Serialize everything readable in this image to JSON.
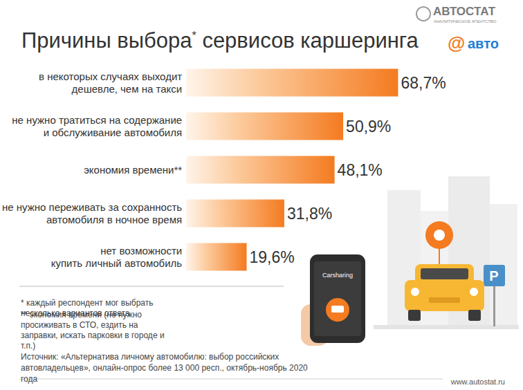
{
  "chart_data": {
    "type": "bar",
    "orientation": "horizontal",
    "title": "Причины выбора* сервисов каршеринга",
    "categories": [
      "в некоторых случаях выходит\nдешевле, чем на такси",
      "не нужно тратиться на содержание\nи обслуживание автомобиля",
      "экономия времени**",
      "не нужно переживать за сохранность\nавтомобиля в ночное время",
      "нет возможности\nкупить личный автомобиль"
    ],
    "values": [
      68.7,
      50.9,
      48.1,
      31.8,
      19.6
    ],
    "value_labels": [
      "68,7%",
      "50,9%",
      "48,1%",
      "31,8%",
      "19,6%"
    ],
    "data_labels": true,
    "color": "#f47b20",
    "xlim": [
      0,
      100
    ],
    "tick_labels": "y",
    "grid": false,
    "footnotes": [
      "* каждый респондент мог выбрать несколько вариантов ответа",
      "** экономия времени (не нужно просиживать в СТО, ездить на заправки, искать парковки в городе и т.п.)"
    ],
    "source": "Источник: «Альтернатива личному автомобилю: выбор российских автовладельцев», онлайн-опрос более 13 000 респ., октябрь-ноябрь 2020 года",
    "website": "www.autostat.ru",
    "logo": {
      "name": "АВТОСТАТ",
      "tagline": "АНАЛИТИЧЕСКОЕ АГЕНТСТВО",
      "partner": [
        "@",
        "авто"
      ]
    },
    "illustration": {
      "phone_text": "Carsharing",
      "sign_text": "P"
    }
  }
}
